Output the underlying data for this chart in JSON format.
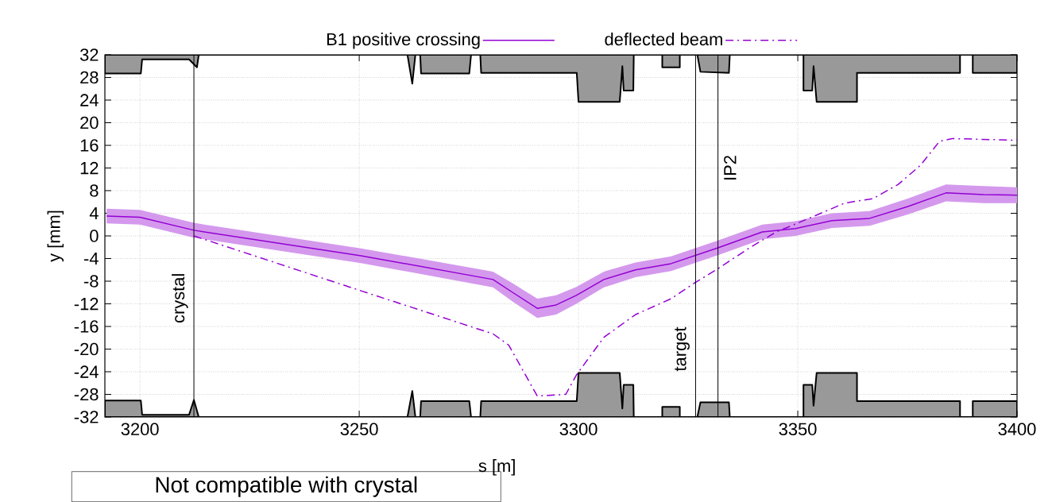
{
  "chart_data": {
    "type": "line",
    "xlabel": "s [m]",
    "ylabel": "y [mm]",
    "xlim": [
      3192,
      3400
    ],
    "ylim": [
      -32,
      32
    ],
    "xticks": [
      3200,
      3250,
      3300,
      3350,
      3400
    ],
    "yticks": [
      -32,
      -28,
      -24,
      -20,
      -16,
      -12,
      -8,
      -4,
      0,
      4,
      8,
      12,
      16,
      20,
      24,
      28,
      32
    ],
    "grid": true,
    "legend": "top",
    "series": [
      {
        "type": "area",
        "color": "#999999",
        "x": [
          3192,
          3192,
          3200.2,
          3200.5,
          3211.2,
          3213,
          3213.4,
          3261,
          3262.1,
          3262.8,
          3263.9,
          3264.1,
          3275.1,
          3275.5,
          3277.6,
          3277.8,
          3299.6,
          3300,
          3309.4,
          3310,
          3310.3,
          3312.5,
          3312.6,
          3319.1,
          3319.1,
          3323.1,
          3323.1,
          3327.1,
          3327.8,
          3334.3,
          3334.5,
          3351.3,
          3351.3,
          3353.3,
          3353.6,
          3354.3,
          3363.5,
          3363.5,
          3387,
          3387,
          3389.9,
          3389.9,
          3400,
          3400
        ],
        "values": [
          32,
          28.7,
          28.7,
          31.2,
          31.2,
          29.8,
          32,
          32,
          26.9,
          32,
          32,
          28.7,
          28.7,
          32,
          32,
          28.8,
          28.8,
          23.7,
          23.7,
          30,
          25.7,
          25.7,
          32,
          32,
          29.8,
          29.8,
          32,
          32,
          29,
          28.8,
          32,
          32,
          25.7,
          25.7,
          30,
          23.7,
          23.7,
          28.8,
          28.8,
          32,
          32,
          28.8,
          28.8,
          32
        ]
      },
      {
        "type": "area",
        "color": "#999999",
        "x": [
          3192,
          3192,
          3200.2,
          3200.5,
          3211.2,
          3212.3,
          3213.4,
          3261,
          3262.1,
          3262.8,
          3263.9,
          3264.1,
          3275.1,
          3275.5,
          3277.6,
          3277.8,
          3299.6,
          3300,
          3309.4,
          3310,
          3310.3,
          3312.5,
          3312.6,
          3319.1,
          3319.1,
          3323.1,
          3323.1,
          3327.1,
          3327.8,
          3334.3,
          3334.5,
          3351.3,
          3351.3,
          3353.3,
          3353.6,
          3354.3,
          3363.5,
          3363.5,
          3387,
          3387,
          3389.9,
          3389.9,
          3400,
          3400
        ],
        "values": [
          -32,
          -29.1,
          -29.1,
          -31.6,
          -31.6,
          -29,
          -32,
          -32,
          -27.4,
          -32,
          -32,
          -29.2,
          -29.2,
          -32,
          -32,
          -29.2,
          -29.2,
          -24.2,
          -24.2,
          -30.5,
          -26.3,
          -26.3,
          -32,
          -32,
          -30.2,
          -30.2,
          -32,
          -32,
          -29.4,
          -29.4,
          -32,
          -32,
          -26.3,
          -26.3,
          -30,
          -24.2,
          -24.2,
          -29.2,
          -29.2,
          -32,
          -32,
          -29.2,
          -29.2,
          -32
        ]
      },
      {
        "name": "B1 positive crossing",
        "color": "#9400d3",
        "line_style": "solid",
        "x": [
          3192.4,
          3200,
          3212.3,
          3250.4,
          3280.5,
          3285,
          3290.6,
          3294.9,
          3299.5,
          3305.8,
          3313,
          3321.1,
          3331.8,
          3341.9,
          3349.5,
          3357.8,
          3366.4,
          3375.1,
          3383.8,
          3392.4,
          3400
        ],
        "values": [
          3.5,
          3.3,
          1,
          -3.5,
          -7.7,
          -10,
          -12.8,
          -12.2,
          -10.5,
          -7.7,
          -6,
          -4.9,
          -2.1,
          0.7,
          1.3,
          2.7,
          3.1,
          5.2,
          7.6,
          7.3,
          7.2
        ],
        "lower": [
          2.2,
          2,
          -0.3,
          -4.8,
          -9.1,
          -11.6,
          -14.5,
          -13.9,
          -12,
          -9.1,
          -7.3,
          -6.2,
          -3.4,
          -0.6,
          0,
          1.4,
          1.8,
          3.8,
          6.1,
          5.8,
          5.8
        ],
        "upper": [
          4.8,
          4.6,
          2.3,
          -2.2,
          -6.3,
          -8.4,
          -11.1,
          -10.5,
          -9,
          -6.3,
          -4.7,
          -3.6,
          -0.8,
          2,
          2.6,
          4,
          4.4,
          6.6,
          9.1,
          8.8,
          8.6
        ]
      },
      {
        "name": "deflected beam",
        "color": "#9400d3",
        "line_style": "dashdot",
        "x": [
          3212.3,
          3250.4,
          3280.5,
          3284.1,
          3290.6,
          3297.1,
          3299.5,
          3305.8,
          3313,
          3321.1,
          3326.5,
          3331.8,
          3339,
          3345.1,
          3349.5,
          3360.7,
          3367.2,
          3372.9,
          3378,
          3382.3,
          3385.2,
          3400
        ],
        "values": [
          0,
          -9.7,
          -17.3,
          -19.3,
          -28.3,
          -28,
          -24.6,
          -17.9,
          -13.9,
          -11.1,
          -8.3,
          -5.8,
          -2.1,
          0.7,
          2.1,
          5.8,
          6.6,
          9.1,
          12.5,
          16.7,
          17.2,
          16.9
        ]
      }
    ],
    "ref_lines": [
      {
        "axis": "x",
        "value": 3212.3,
        "label": "crystal"
      },
      {
        "axis": "x",
        "value": 3326.7,
        "label": "target"
      },
      {
        "axis": "x",
        "value": 3331.8,
        "label": "IP2"
      }
    ],
    "annotations": [
      "Not compatible with crystal"
    ]
  }
}
